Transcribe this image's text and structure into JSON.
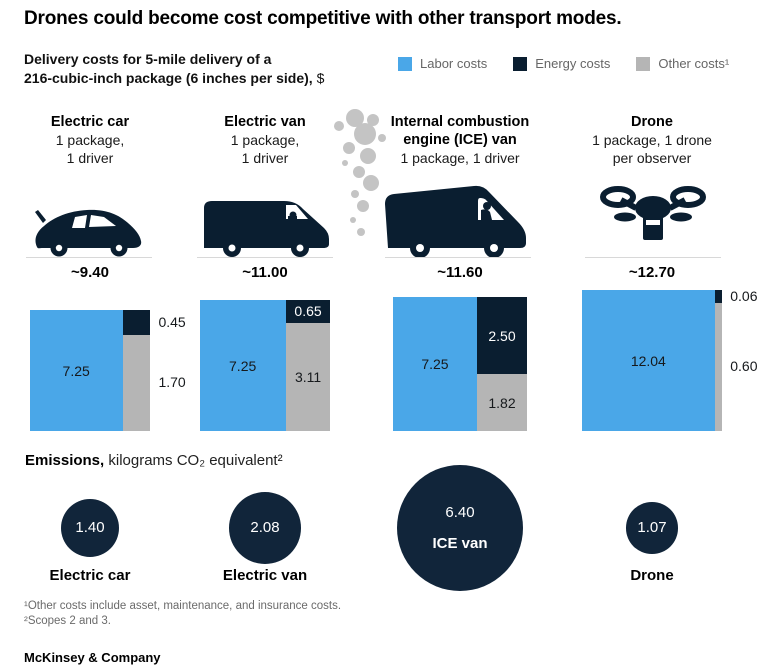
{
  "title": "Drones could become cost competitive with other transport modes.",
  "subtitle": {
    "line1": "Delivery costs for 5-mile delivery of a",
    "line2": "216-cubic-inch package (6 inches per side),",
    "unit": "$"
  },
  "legend": {
    "items": [
      {
        "label": "Labor costs",
        "color": "#4aa7e8"
      },
      {
        "label": "Energy costs",
        "color": "#0a1e30"
      },
      {
        "label": "Other costs¹",
        "color": "#b5b5b5"
      }
    ]
  },
  "colors": {
    "labor": "#4aa7e8",
    "energy": "#0a1e30",
    "other": "#b5b5b5",
    "bubble": "#11253a",
    "smoke": "#c4c4c4"
  },
  "modes": [
    {
      "line1": "Electric car",
      "sub1": "1 package,",
      "sub2": "1 driver",
      "total": "~9.40",
      "costs": {
        "labor": {
          "value": 7.25,
          "label": "7.25"
        },
        "energy": {
          "value": 0.45,
          "label": "0.45"
        },
        "other": {
          "value": 1.7,
          "label": "1.70"
        }
      },
      "emissions": {
        "value": 1.4,
        "label": "1.40",
        "name": "Electric car"
      }
    },
    {
      "line1": "Electric van",
      "sub1": "1 package,",
      "sub2": "1 driver",
      "total": "~11.00",
      "costs": {
        "labor": {
          "value": 7.25,
          "label": "7.25"
        },
        "energy": {
          "value": 0.65,
          "label": "0.65"
        },
        "other": {
          "value": 3.11,
          "label": "3.11"
        }
      },
      "emissions": {
        "value": 2.08,
        "label": "2.08",
        "name": "Electric van"
      }
    },
    {
      "line1": "Internal combustion",
      "line2": "engine (ICE) van",
      "sub1": "1 package, 1 driver",
      "total": "~11.60",
      "costs": {
        "labor": {
          "value": 7.25,
          "label": "7.25"
        },
        "energy": {
          "value": 2.5,
          "label": "2.50"
        },
        "other": {
          "value": 1.82,
          "label": "1.82"
        }
      },
      "emissions": {
        "value": 6.4,
        "label": "6.40",
        "name": "ICE van"
      }
    },
    {
      "line1": "Drone",
      "sub1": "1 package, 1 drone",
      "sub2": "per observer",
      "total": "~12.70",
      "costs": {
        "labor": {
          "value": 12.04,
          "label": "12.04"
        },
        "energy": {
          "value": 0.06,
          "label": "0.06"
        },
        "other": {
          "value": 0.6,
          "label": "0.60"
        }
      },
      "emissions": {
        "value": 1.07,
        "label": "1.07",
        "name": "Drone"
      }
    }
  ],
  "emissions_header": {
    "bold": "Emissions,",
    "rest": " kilograms CO₂ equivalent²"
  },
  "footnotes": [
    "¹Other costs include asset, maintenance, and insurance costs.",
    "²Scopes 2 and 3."
  ],
  "brand": "McKinsey & Company",
  "chart_data": [
    {
      "type": "bar",
      "subtype": "marimekko-stacked-squares",
      "title": "Delivery costs for 5-mile delivery of a 216-cubic-inch package (6 inches per side), $",
      "categories": [
        "Electric car",
        "Electric van",
        "Internal combustion engine (ICE) van",
        "Drone"
      ],
      "series": [
        {
          "name": "Labor costs",
          "values": [
            7.25,
            7.25,
            7.25,
            12.04
          ]
        },
        {
          "name": "Energy costs",
          "values": [
            0.45,
            0.65,
            2.5,
            0.06
          ]
        },
        {
          "name": "Other costs",
          "values": [
            1.7,
            3.11,
            1.82,
            0.6
          ]
        }
      ],
      "totals_label": [
        "~9.40",
        "~11.00",
        "~11.60",
        "~12.70"
      ],
      "legend_position": "top-right",
      "grid": false
    },
    {
      "type": "scatter",
      "subtype": "proportional-bubbles",
      "title": "Emissions, kilograms CO₂ equivalent²",
      "categories": [
        "Electric car",
        "Electric van",
        "ICE van",
        "Drone"
      ],
      "values": [
        1.4,
        2.08,
        6.4,
        1.07
      ]
    }
  ]
}
